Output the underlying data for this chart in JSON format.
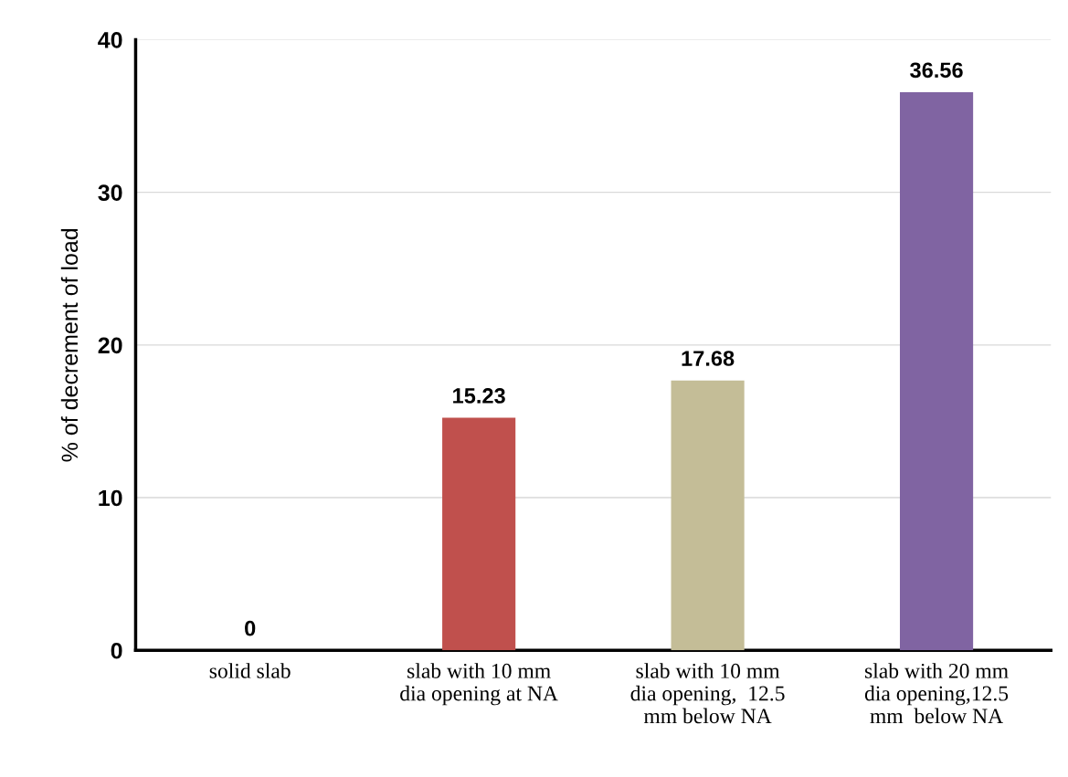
{
  "chart_data": {
    "type": "bar",
    "ylabel": "% of decrement of load",
    "categories": [
      "solid slab",
      "slab with 10 mm\ndia opening at NA",
      "slab with 10 mm\ndia opening,  12.5\nmm below NA",
      "slab with 20 mm\ndia opening,12.5\nmm  below NA"
    ],
    "values": [
      0,
      15.23,
      17.68,
      36.56
    ],
    "colors": [
      "#4f81bd",
      "#c0504d",
      "#c4bd97",
      "#8064a2"
    ],
    "ylim": [
      0,
      40
    ],
    "yticks": [
      0,
      10,
      20,
      30,
      40
    ],
    "grid": "y",
    "data_labels": true
  }
}
